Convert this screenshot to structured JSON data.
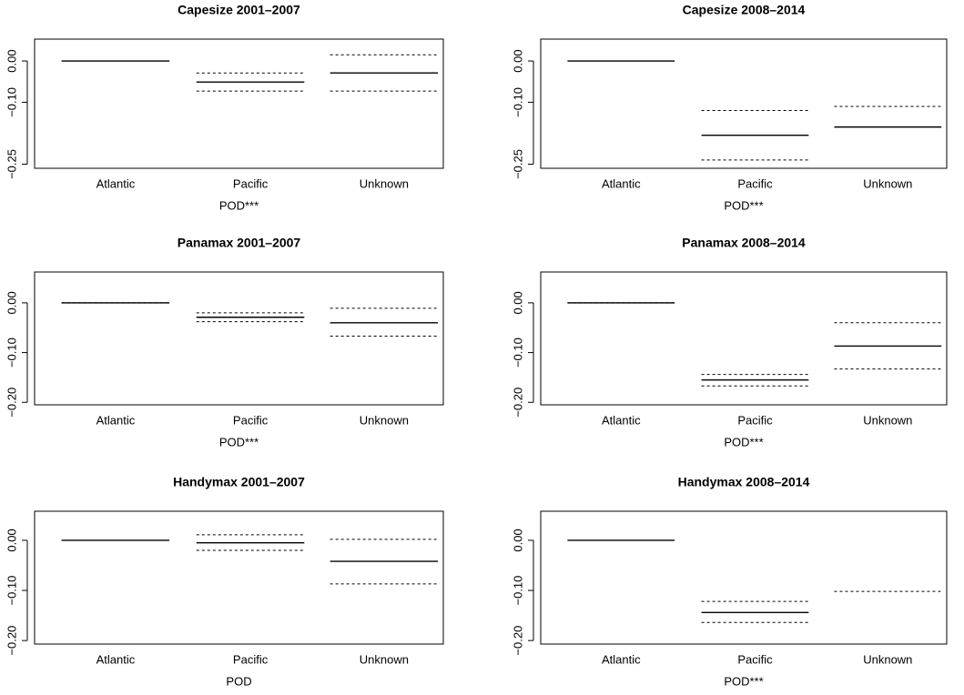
{
  "chart_data": [
    {
      "type": "segment",
      "title": "Capesize 2001–2007",
      "xlabel": "POD***",
      "categories": [
        "Atlantic",
        "Pacific",
        "Unknown"
      ],
      "series": [
        {
          "color": "#000000",
          "linestyle": "solid",
          "values": [
            0,
            -0.051,
            -0.029
          ]
        },
        {
          "color": "#000000",
          "linestyle": "dashed",
          "values": [
            0,
            -0.029,
            0.015
          ]
        },
        {
          "color": "#000000",
          "linestyle": "dashed",
          "values": [
            0,
            -0.073,
            -0.073
          ]
        }
      ],
      "ylim": [
        -0.26,
        0.053
      ],
      "yticks": [
        {
          "value": 0,
          "label": "0.00"
        },
        {
          "value": -0.1,
          "label": "−0.10"
        },
        {
          "value": -0.25,
          "label": "−0.25"
        }
      ]
    },
    {
      "type": "segment",
      "title": "Capesize 2008–2014",
      "xlabel": "POD***",
      "categories": [
        "Atlantic",
        "Pacific",
        "Unknown"
      ],
      "series": [
        {
          "color": "#000000",
          "linestyle": "solid",
          "values": [
            0,
            -0.18,
            -0.16
          ]
        },
        {
          "color": "#000000",
          "linestyle": "dashed",
          "values": [
            0,
            -0.12,
            -0.11
          ]
        },
        {
          "color": "#000000",
          "linestyle": "dashed",
          "values": [
            0,
            -0.24,
            null
          ]
        }
      ],
      "ylim": [
        -0.26,
        0.053
      ],
      "yticks": [
        {
          "value": 0,
          "label": "0.00"
        },
        {
          "value": -0.1,
          "label": "−0.10"
        },
        {
          "value": -0.25,
          "label": "−0.25"
        }
      ]
    },
    {
      "type": "segment",
      "title": "Panamax 2001–2007",
      "xlabel": "POD***",
      "categories": [
        "Atlantic",
        "Pacific",
        "Unknown"
      ],
      "series": [
        {
          "color": "#000000",
          "linestyle": "solid",
          "values": [
            0,
            -0.029,
            -0.04
          ]
        },
        {
          "color": "#000000",
          "linestyle": "dashed",
          "values": [
            0,
            -0.02,
            -0.011
          ]
        },
        {
          "color": "#000000",
          "linestyle": "dashed",
          "values": [
            0,
            -0.038,
            -0.067
          ]
        }
      ],
      "ylim": [
        -0.205,
        0.062
      ],
      "yticks": [
        {
          "value": 0,
          "label": "0.00"
        },
        {
          "value": -0.1,
          "label": "−0.10"
        },
        {
          "value": -0.2,
          "label": "−0.20"
        }
      ]
    },
    {
      "type": "segment",
      "title": "Panamax 2008–2014",
      "xlabel": "POD***",
      "categories": [
        "Atlantic",
        "Pacific",
        "Unknown"
      ],
      "series": [
        {
          "color": "#000000",
          "linestyle": "solid",
          "values": [
            0,
            -0.155,
            -0.087
          ]
        },
        {
          "color": "#000000",
          "linestyle": "dashed",
          "values": [
            0,
            -0.144,
            -0.04
          ]
        },
        {
          "color": "#000000",
          "linestyle": "dashed",
          "values": [
            0,
            -0.167,
            -0.133
          ]
        }
      ],
      "ylim": [
        -0.205,
        0.062
      ],
      "yticks": [
        {
          "value": 0,
          "label": "0.00"
        },
        {
          "value": -0.1,
          "label": "−0.10"
        },
        {
          "value": -0.2,
          "label": "−0.20"
        }
      ]
    },
    {
      "type": "segment",
      "title": "Handymax 2001–2007",
      "xlabel": "POD",
      "categories": [
        "Atlantic",
        "Pacific",
        "Unknown"
      ],
      "series": [
        {
          "color": "#000000",
          "linestyle": "solid",
          "values": [
            0,
            -0.005,
            -0.042
          ]
        },
        {
          "color": "#000000",
          "linestyle": "dashed",
          "values": [
            0,
            0.011,
            0.002
          ]
        },
        {
          "color": "#000000",
          "linestyle": "dashed",
          "values": [
            0,
            -0.02,
            -0.087
          ]
        }
      ],
      "ylim": [
        -0.207,
        0.058
      ],
      "yticks": [
        {
          "value": 0,
          "label": "0.00"
        },
        {
          "value": -0.1,
          "label": "−0.10"
        },
        {
          "value": -0.2,
          "label": "−0.20"
        }
      ]
    },
    {
      "type": "segment",
      "title": "Handymax 2008–2014",
      "xlabel": "POD***",
      "categories": [
        "Atlantic",
        "Pacific",
        "Unknown"
      ],
      "series": [
        {
          "color": "#000000",
          "linestyle": "solid",
          "values": [
            0,
            -0.144,
            null
          ]
        },
        {
          "color": "#000000",
          "linestyle": "dashed",
          "values": [
            0,
            -0.122,
            -0.102
          ]
        },
        {
          "color": "#000000",
          "linestyle": "dashed",
          "values": [
            0,
            -0.164,
            null
          ]
        }
      ],
      "ylim": [
        -0.207,
        0.058
      ],
      "yticks": [
        {
          "value": 0,
          "label": "0.00"
        },
        {
          "value": -0.1,
          "label": "−0.10"
        },
        {
          "value": -0.2,
          "label": "−0.20"
        }
      ]
    }
  ]
}
